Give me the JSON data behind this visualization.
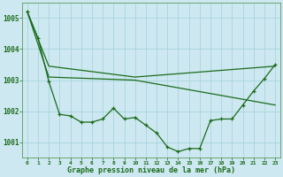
{
  "title": "Graphe pression niveau de la mer (hPa)",
  "background_color": "#cde8f0",
  "grid_color": "#a8d4de",
  "line_color": "#1a6b1a",
  "xlim": [
    -0.5,
    23.5
  ],
  "ylim": [
    1000.5,
    1005.5
  ],
  "yticks": [
    1001,
    1002,
    1003,
    1004,
    1005
  ],
  "xticks": [
    0,
    1,
    2,
    3,
    4,
    5,
    6,
    7,
    8,
    9,
    10,
    11,
    12,
    13,
    14,
    15,
    16,
    17,
    18,
    19,
    20,
    21,
    22,
    23
  ],
  "series1_x": [
    0,
    1,
    2,
    3,
    4,
    5,
    6,
    7,
    8,
    9,
    10,
    11,
    12,
    13,
    14,
    15,
    16,
    17,
    18,
    19,
    20,
    21,
    22,
    23
  ],
  "series1_y": [
    1005.2,
    1004.35,
    1002.95,
    1001.9,
    1001.85,
    1001.65,
    1001.65,
    1001.75,
    1002.1,
    1001.75,
    1001.8,
    1001.55,
    1001.3,
    1000.85,
    1000.7,
    1000.8,
    1000.8,
    1001.7,
    1001.75,
    1001.75,
    1002.2,
    1002.65,
    1003.05,
    1003.5
  ],
  "series2_x": [
    0,
    2,
    10,
    23
  ],
  "series2_y": [
    1005.2,
    1003.45,
    1003.1,
    1003.45
  ],
  "series3_x": [
    0,
    2,
    10,
    23
  ],
  "series3_y": [
    1005.2,
    1003.1,
    1003.0,
    1002.2
  ],
  "lw": 0.9,
  "marker_size": 3.0
}
